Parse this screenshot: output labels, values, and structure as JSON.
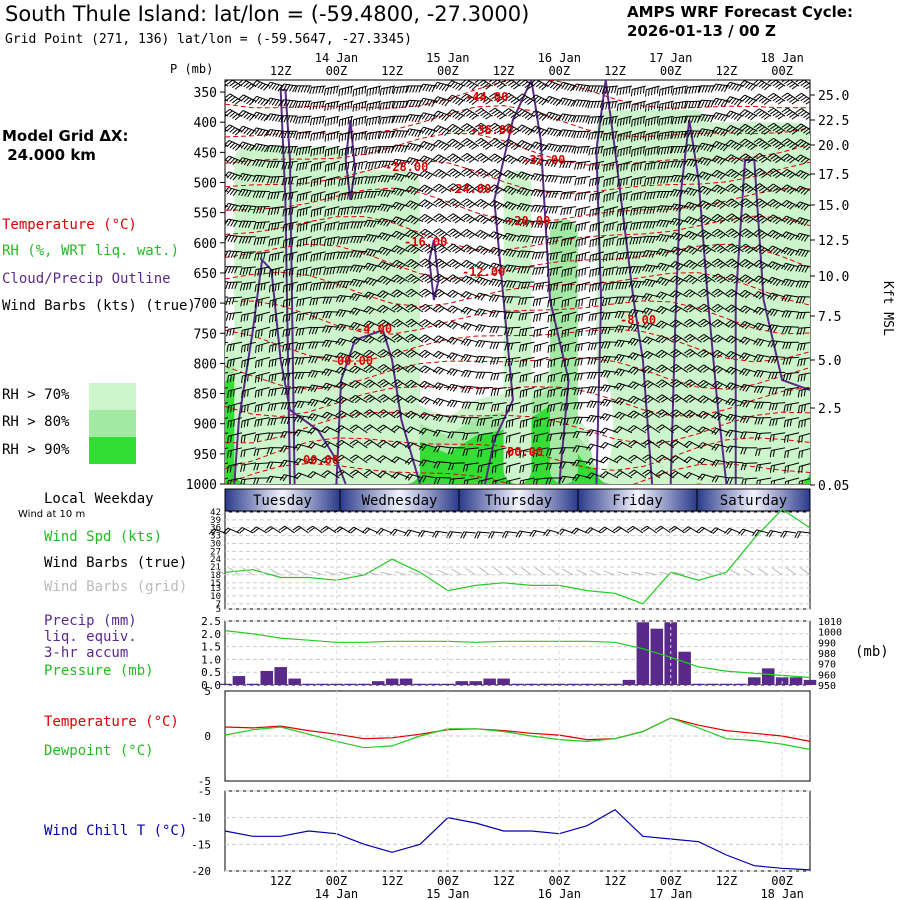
{
  "header": {
    "title": "South Thule Island:  lat/lon = (-59.4800, -27.3000)",
    "grid_point": "Grid Point (271, 136) lat/lon = (-59.5647, -27.3345)",
    "cycle_line1": "AMPS WRF Forecast Cycle:",
    "cycle_line2": "2026-01-13 / 00  Z",
    "model_grid_line1": "Model Grid ΔX:",
    "model_grid_line2": " 24.000 km"
  },
  "time_axis": {
    "hour_labels": [
      "12Z",
      "00Z",
      "12Z",
      "00Z",
      "12Z",
      "00Z",
      "12Z",
      "00Z",
      "12Z",
      "00Z"
    ],
    "date_labels": [
      "14 Jan",
      "15 Jan",
      "16 Jan",
      "17 Jan",
      "18 Jan"
    ],
    "weekdays": [
      "Tuesday",
      "Wednesday",
      "Thursday",
      "Friday",
      "Saturday"
    ]
  },
  "legend": {
    "temperature": "Temperature (°C)",
    "rh": "RH (%, WRT liq. wat.)",
    "cloud": "Cloud/Precip Outline",
    "wind_barbs": "Wind Barbs (kts) (true)",
    "rh70": "RH > 70%",
    "rh80": "RH > 80%",
    "rh90": "RH > 90%",
    "local_weekday": "Local Weekday",
    "wind_at_10m": "Wind at 10 m",
    "wind_spd": "Wind Spd (kts)",
    "wind_barbs_true": "Wind Barbs (true)",
    "wind_barbs_grid": "Wind Barbs (grid)",
    "precip1": "Precip (mm)",
    "precip2": "liq. equiv.",
    "precip3": "3-hr accum",
    "pressure": "Pressure (mb)",
    "pressure_unit": "(mb)",
    "temp": "Temperature (°C)",
    "dewpoint": "Dewpoint (°C)",
    "windchill": "Wind Chill T (°C)"
  },
  "colors": {
    "temperature": "#dd0000",
    "rh70": "#ccf5cc",
    "rh80": "#a3e9a3",
    "rh90": "#33dd33",
    "cloud": "#5a2a8a",
    "wind": "#22cc22",
    "precip": "#5a2a8a",
    "windchill": "#0000aa"
  },
  "chart_data": [
    {
      "type": "heatmap",
      "title": "Vertical cross-section",
      "ylabel": "P (mb)",
      "y2label": "Kft MSL",
      "pressure_levels": [
        1000,
        950,
        900,
        850,
        800,
        750,
        700,
        650,
        600,
        550,
        500,
        450,
        400,
        350
      ],
      "kft_ticks": [
        "25.0",
        "22.5",
        "20.0",
        "17.5",
        "15.0",
        "12.5",
        "10.0",
        "7.5",
        "5.0",
        "2.5",
        "0.05"
      ],
      "temp_contour_labels": [
        "-44.00",
        "-36.00",
        "-32.00",
        "-28.00",
        "-24.00",
        "-20.00",
        "-16.00",
        "-12.00",
        "-8.00",
        "-4.00",
        "00.00",
        "00.00",
        "00.00"
      ]
    },
    {
      "type": "line",
      "title": "Wind at 10 m",
      "ylabel": "Wind Spd (kts)",
      "yticks": [
        42,
        39,
        36,
        33,
        30,
        27,
        24,
        21,
        18,
        15,
        13,
        10,
        7,
        5
      ],
      "ylim": [
        5,
        42
      ],
      "x_hours": [
        0,
        6,
        12,
        18,
        24,
        30,
        36,
        42,
        48,
        54,
        60,
        66,
        72,
        78,
        84,
        90,
        96,
        102,
        108,
        114,
        120,
        126
      ],
      "values": [
        19,
        20,
        17,
        17,
        16,
        18,
        24,
        19,
        12,
        14,
        15,
        14,
        14,
        12,
        11,
        7,
        19,
        16,
        19,
        32,
        43,
        36
      ]
    },
    {
      "type": "bar",
      "title": "Precip 3-hr accum and Pressure",
      "ylabel": "Precip (mm)",
      "y2label": "Pressure (mb)",
      "yticks": [
        "2.5",
        "2.0",
        "1.5",
        "1.0",
        "0.5",
        "0.0"
      ],
      "y2ticks": [
        "1010",
        "1000",
        "990",
        "980",
        "970",
        "960",
        "950"
      ],
      "ylim": [
        0,
        2.5
      ],
      "precip_hours": [
        0,
        3,
        6,
        9,
        12,
        15,
        18,
        21,
        24,
        27,
        30,
        33,
        36,
        39,
        42,
        45,
        48,
        51,
        54,
        57,
        60,
        63,
        66,
        69,
        72,
        75,
        78,
        81,
        84,
        87,
        90,
        93,
        96,
        99,
        102,
        105,
        108,
        111,
        114,
        117,
        120,
        123,
        126
      ],
      "precip_values": [
        0.05,
        0.35,
        0.05,
        0.55,
        0.7,
        0.25,
        0.05,
        0.05,
        0.05,
        0.05,
        0.05,
        0.15,
        0.25,
        0.25,
        0.05,
        0.05,
        0.05,
        0.15,
        0.15,
        0.25,
        0.25,
        0.05,
        0.05,
        0.05,
        0.05,
        0.05,
        0.05,
        0.05,
        0.05,
        0.2,
        2.45,
        2.2,
        2.45,
        1.3,
        0.05,
        0.05,
        0.05,
        0.05,
        0.3,
        0.65,
        0.3,
        0.3,
        0.2
      ],
      "pressure_hours": [
        0,
        6,
        12,
        18,
        24,
        30,
        36,
        42,
        48,
        54,
        60,
        66,
        72,
        78,
        84,
        90,
        96,
        102,
        108,
        114,
        120,
        126
      ],
      "pressure_values": [
        1001,
        998,
        994,
        992,
        990,
        990,
        991,
        991,
        991,
        990,
        991,
        991,
        991,
        991,
        990,
        984,
        976,
        967,
        963,
        961,
        959,
        957
      ]
    },
    {
      "type": "line",
      "title": "Temperature and Dewpoint",
      "yticks": [
        "5",
        "0",
        "-5"
      ],
      "ylim": [
        -5,
        5
      ],
      "x_hours": [
        0,
        6,
        12,
        18,
        24,
        30,
        36,
        42,
        48,
        54,
        60,
        66,
        72,
        78,
        84,
        90,
        96,
        102,
        108,
        114,
        120,
        126
      ],
      "series": [
        {
          "name": "Temperature (°C)",
          "values": [
            1.0,
            0.9,
            1.1,
            0.6,
            0.2,
            -0.3,
            -0.2,
            0.2,
            0.7,
            0.8,
            0.6,
            0.3,
            0.1,
            -0.4,
            -0.3,
            0.5,
            2.0,
            1.2,
            0.6,
            0.3,
            0.0,
            -0.6
          ]
        },
        {
          "name": "Dewpoint (°C)",
          "values": [
            0.1,
            0.7,
            1.0,
            0.2,
            -0.6,
            -1.3,
            -1.1,
            0.0,
            0.8,
            0.8,
            0.5,
            0.0,
            -0.4,
            -0.6,
            -0.3,
            0.5,
            2.0,
            0.9,
            -0.3,
            -0.5,
            -0.9,
            -1.5
          ]
        }
      ]
    },
    {
      "type": "line",
      "title": "Wind Chill",
      "ylabel": "Wind Chill T (°C)",
      "yticks": [
        "-5",
        "-10",
        "-15",
        "-20"
      ],
      "ylim": [
        -20,
        -5
      ],
      "x_hours": [
        0,
        6,
        12,
        18,
        24,
        30,
        36,
        42,
        48,
        54,
        60,
        66,
        72,
        78,
        84,
        90,
        96,
        102,
        108,
        114,
        120,
        126
      ],
      "values": [
        -12.5,
        -13.5,
        -13.5,
        -12.5,
        -13.0,
        -15.0,
        -16.5,
        -15.0,
        -10.0,
        -11.0,
        -12.5,
        -12.5,
        -13.0,
        -11.5,
        -8.5,
        -13.5,
        -14.0,
        -14.5,
        -17.0,
        -19.0,
        -19.5,
        -19.8
      ]
    }
  ]
}
